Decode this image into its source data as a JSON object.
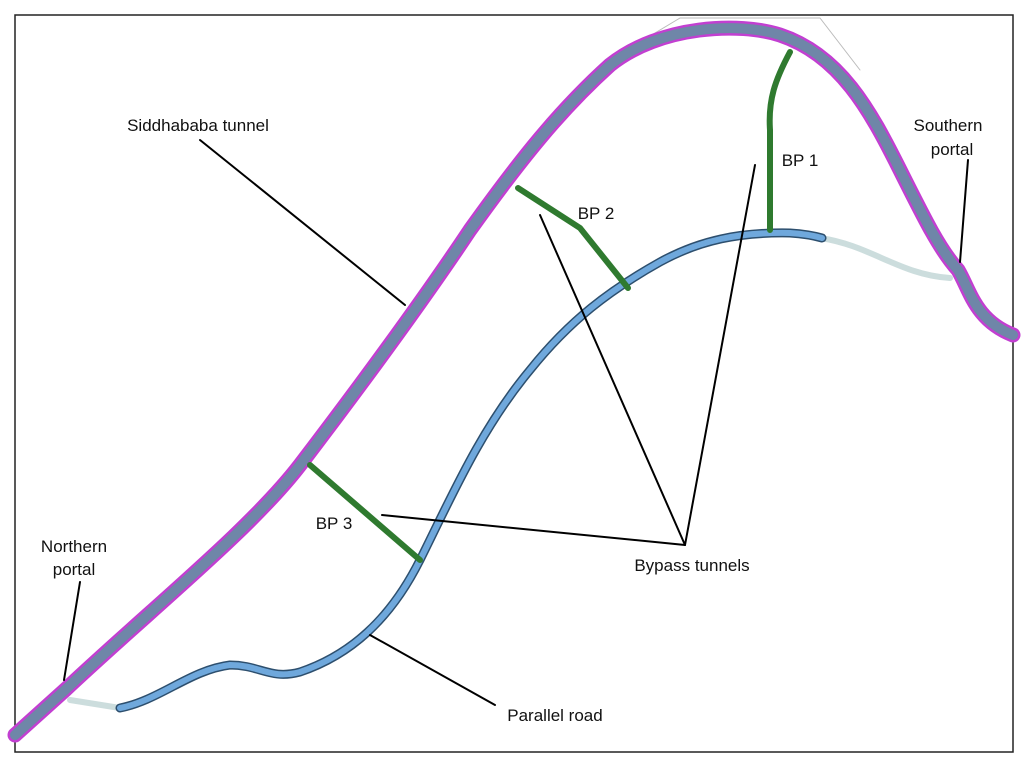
{
  "labels": {
    "tunnel": [
      "Siddhababa tunnel"
    ],
    "southern_portal": [
      "Southern",
      "portal"
    ],
    "bp1": [
      "BP 1"
    ],
    "bp2": [
      "BP 2"
    ],
    "bp3": [
      "BP 3"
    ],
    "northern_portal": [
      "Northern",
      "portal"
    ],
    "bypass_tunnels": [
      "Bypass tunnels"
    ],
    "parallel_road": [
      "Parallel road"
    ]
  }
}
